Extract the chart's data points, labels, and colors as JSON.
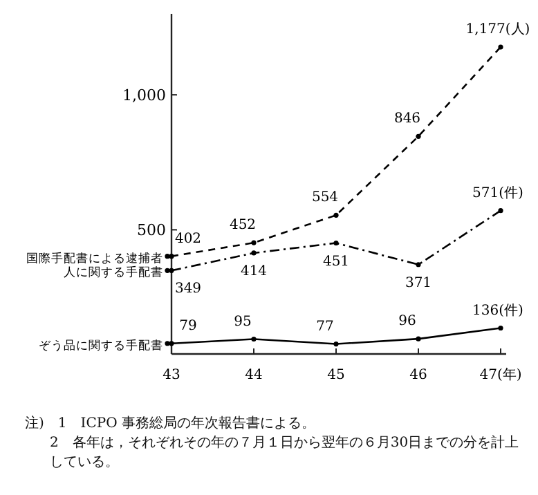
{
  "chart_data": {
    "type": "line",
    "categories": [
      "43",
      "44",
      "45",
      "46",
      "47(年)"
    ],
    "series": [
      {
        "name": "国際手配書による逮捕者",
        "color": "#000000",
        "line_style": "dashed",
        "values": [
          402,
          452,
          554,
          846,
          1177
        ],
        "value_labels": [
          "402",
          "452",
          "554",
          "846",
          "1,177(人)"
        ]
      },
      {
        "name": "人に関する手配書",
        "color": "#000000",
        "line_style": "dashdot",
        "values": [
          349,
          414,
          451,
          371,
          571
        ],
        "value_labels": [
          "349",
          "414",
          "451",
          "371",
          "571(件)"
        ]
      },
      {
        "name": "ぞう品に関する手配書",
        "color": "#000000",
        "line_style": "solid",
        "values": [
          79,
          95,
          77,
          96,
          136
        ],
        "value_labels": [
          "79",
          "95",
          "77",
          "96",
          "136(件)"
        ]
      }
    ],
    "ylim": [
      40,
      1300
    ],
    "yticks": [
      500,
      {
        "value": 1000,
        "label": "1,000"
      }
    ],
    "marker": "circle",
    "grid": false,
    "legend": "left",
    "annotations": [
      "注)　1　ICPO 事務総局の年次報告書による。",
      "2　各年は，それぞれその年の７月１日から翌年の６月30日までの分を計上している。"
    ]
  }
}
